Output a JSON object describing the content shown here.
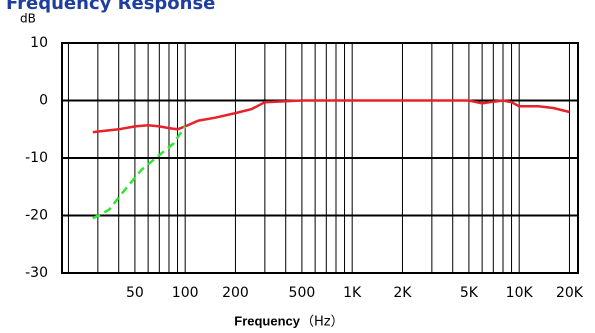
{
  "chart_data": {
    "type": "line",
    "title": "Frequency Response",
    "y_label": "dB",
    "x_label": "Frequency",
    "x_unit": "（Hz）",
    "xscale": "log",
    "xlim": [
      18.3,
      22500
    ],
    "ylim": [
      -30,
      10
    ],
    "yticks": [
      10,
      0,
      -10,
      -20,
      -30
    ],
    "xticks": [
      50,
      100,
      200,
      500,
      {
        "value": 1000,
        "label": "1K"
      },
      {
        "value": 2000,
        "label": "2K"
      },
      {
        "value": 5000,
        "label": "5K"
      },
      {
        "value": 10000,
        "label": "10K"
      },
      {
        "value": 20000,
        "label": "20K"
      }
    ],
    "xgrid": [
      20,
      30,
      40,
      50,
      60,
      70,
      80,
      90,
      100,
      200,
      300,
      400,
      500,
      600,
      700,
      800,
      900,
      1000,
      2000,
      3000,
      4000,
      5000,
      6000,
      7000,
      8000,
      9000,
      10000,
      20000
    ],
    "grid": true,
    "series": [
      {
        "color": "#e8222a",
        "dash": false,
        "x": [
          28,
          40,
          50,
          60,
          70,
          80,
          90,
          100,
          120,
          150,
          200,
          250,
          300,
          500,
          1000,
          2000,
          4000,
          5000,
          6000,
          7000,
          8000,
          9000,
          10000,
          13000,
          16000,
          20000
        ],
        "values": [
          -5.5,
          -5,
          -4.5,
          -4.3,
          -4.5,
          -4.8,
          -5,
          -4.5,
          -3.5,
          -3,
          -2.2,
          -1.5,
          -0.3,
          0,
          0,
          0,
          0,
          0,
          -0.5,
          -0.2,
          0,
          -0.3,
          -1,
          -1,
          -1.3,
          -2
        ]
      },
      {
        "color": "#2ee82e",
        "dash": true,
        "x": [
          28,
          35,
          45,
          55,
          70,
          85,
          100
        ],
        "values": [
          -20.5,
          -19,
          -15,
          -12,
          -9.5,
          -7.5,
          -4.5
        ]
      }
    ]
  }
}
